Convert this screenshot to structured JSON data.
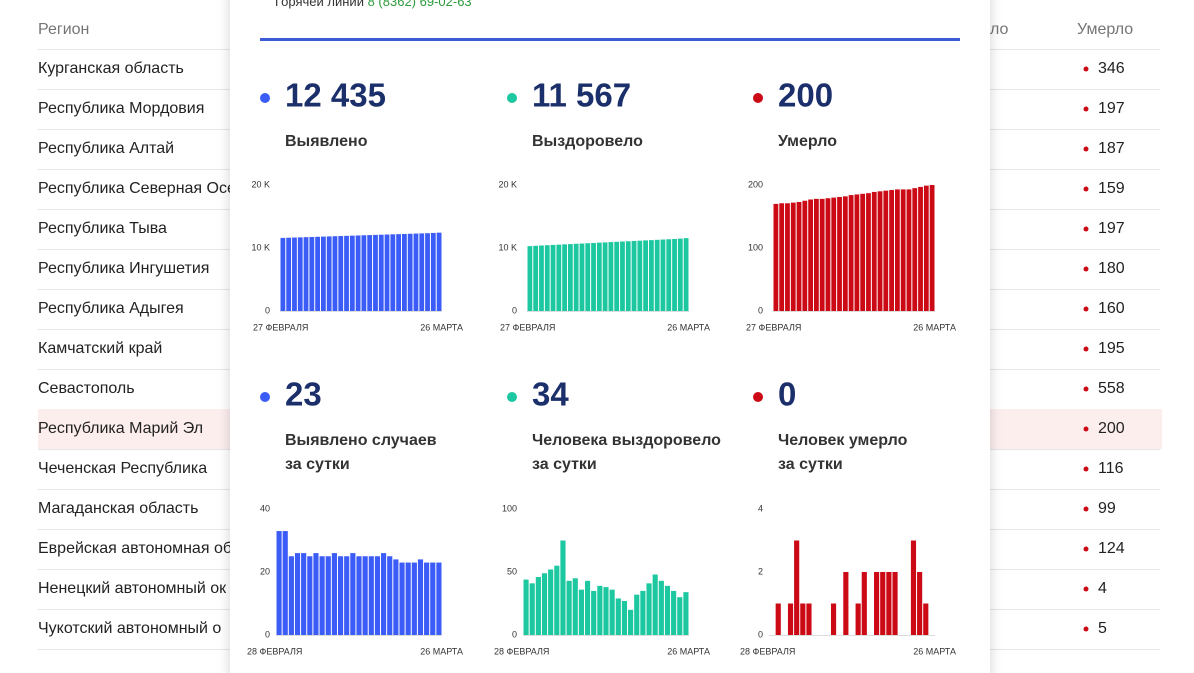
{
  "table": {
    "headers": [
      "Регион",
      "ло",
      "Умерло"
    ],
    "rows": [
      {
        "region": "Курганская область",
        "deaths": "346"
      },
      {
        "region": "Республика Мордовия",
        "deaths": "197"
      },
      {
        "region": "Республика Алтай",
        "deaths": "187"
      },
      {
        "region": "Республика Северная Осе",
        "deaths": "159"
      },
      {
        "region": "Республика Тыва",
        "deaths": "197"
      },
      {
        "region": "Республика Ингушетия",
        "deaths": "180"
      },
      {
        "region": "Республика Адыгея",
        "deaths": "160"
      },
      {
        "region": "Камчатский край",
        "deaths": "195"
      },
      {
        "region": "Севастополь",
        "deaths": "558"
      },
      {
        "region": "Республика Марий Эл",
        "deaths": "200",
        "highlighted": true
      },
      {
        "region": "Чеченская Республика",
        "deaths": "116"
      },
      {
        "region": "Магаданская область",
        "deaths": "99"
      },
      {
        "region": "Еврейская автономная об",
        "deaths": "124"
      },
      {
        "region": "Ненецкий автономный ок",
        "deaths": "4"
      },
      {
        "region": "Чукотский автономный о",
        "deaths": "5"
      }
    ]
  },
  "modal": {
    "hotline_label": "Горячей линии",
    "hotline_phone": "8 (8362) 69-02-63",
    "stats": [
      {
        "value": "12 435",
        "label": [
          "Выявлено"
        ]
      },
      {
        "value": "11 567",
        "label": [
          "Выздоровело"
        ]
      },
      {
        "value": "200",
        "label": [
          "Умерло"
        ]
      },
      {
        "value": "23",
        "label": [
          "Выявлено случаев",
          "за сутки"
        ]
      },
      {
        "value": "34",
        "label": [
          "Человека выздоровело",
          "за сутки"
        ]
      },
      {
        "value": "0",
        "label": [
          "Человек умерло",
          "за сутки"
        ]
      }
    ]
  },
  "chart_data": [
    {
      "type": "bar",
      "color": "#3b5cf6",
      "categories": [
        "27 ФЕВРАЛЯ",
        null,
        null,
        null,
        null,
        null,
        null,
        null,
        null,
        null,
        null,
        null,
        null,
        null,
        null,
        null,
        null,
        null,
        null,
        null,
        null,
        null,
        null,
        null,
        null,
        null,
        null,
        "26 МАРТА"
      ],
      "values": [
        11600,
        11630,
        11660,
        11690,
        11720,
        11750,
        11780,
        11810,
        11840,
        11870,
        11900,
        11930,
        11960,
        11990,
        12020,
        12050,
        12080,
        12110,
        12140,
        12170,
        12200,
        12230,
        12260,
        12290,
        12320,
        12350,
        12390,
        12435
      ],
      "ylim": [
        0,
        20000
      ],
      "yticks": [
        0,
        {
          "value": 10000,
          "label": "10 K"
        },
        {
          "value": 20000,
          "label": "20 K"
        }
      ]
    },
    {
      "type": "bar",
      "color": "#1dc8a0",
      "categories": [
        "27 ФЕВРАЛЯ",
        null,
        null,
        null,
        null,
        null,
        null,
        null,
        null,
        null,
        null,
        null,
        null,
        null,
        null,
        null,
        null,
        null,
        null,
        null,
        null,
        null,
        null,
        null,
        null,
        null,
        null,
        "26 МАРТА"
      ],
      "values": [
        10300,
        10350,
        10400,
        10440,
        10490,
        10530,
        10580,
        10620,
        10670,
        10710,
        10760,
        10800,
        10850,
        10890,
        10940,
        10980,
        11030,
        11070,
        11120,
        11160,
        11210,
        11250,
        11300,
        11340,
        11390,
        11430,
        11490,
        11567
      ],
      "ylim": [
        0,
        20000
      ],
      "yticks": [
        0,
        {
          "value": 10000,
          "label": "10 K"
        },
        {
          "value": 20000,
          "label": "20 K"
        }
      ]
    },
    {
      "type": "bar",
      "color": "#cc0a16",
      "categories": [
        "27 ФЕВРАЛЯ",
        null,
        null,
        null,
        null,
        null,
        null,
        null,
        null,
        null,
        null,
        null,
        null,
        null,
        null,
        null,
        null,
        null,
        null,
        null,
        null,
        null,
        null,
        null,
        null,
        null,
        null,
        "26 МАРТА"
      ],
      "values": [
        170,
        171,
        171,
        172,
        173,
        175,
        177,
        178,
        178,
        179,
        180,
        181,
        182,
        184,
        185,
        186,
        187,
        189,
        190,
        191,
        192,
        193,
        193,
        193,
        195,
        197,
        199,
        200
      ],
      "ylim": [
        0,
        200
      ],
      "yticks": [
        0,
        100,
        200
      ]
    },
    {
      "type": "bar",
      "color": "#3b5cf6",
      "categories": [
        "28 ФЕВРАЛЯ",
        null,
        null,
        null,
        null,
        null,
        null,
        null,
        null,
        null,
        null,
        null,
        null,
        null,
        null,
        null,
        null,
        null,
        null,
        null,
        null,
        null,
        null,
        null,
        null,
        null,
        "26 МАРТА"
      ],
      "values": [
        33,
        33,
        25,
        26,
        26,
        25,
        26,
        25,
        25,
        26,
        25,
        25,
        26,
        25,
        25,
        25,
        25,
        26,
        25,
        24,
        23,
        23,
        23,
        24,
        23,
        23,
        23
      ],
      "ylim": [
        0,
        40
      ],
      "yticks": [
        0,
        20,
        40
      ]
    },
    {
      "type": "bar",
      "color": "#1dc8a0",
      "categories": [
        "28 ФЕВРАЛЯ",
        null,
        null,
        null,
        null,
        null,
        null,
        null,
        null,
        null,
        null,
        null,
        null,
        null,
        null,
        null,
        null,
        null,
        null,
        null,
        null,
        null,
        null,
        null,
        null,
        null,
        "26 МАРТА"
      ],
      "values": [
        44,
        41,
        46,
        49,
        52,
        55,
        75,
        43,
        45,
        36,
        43,
        35,
        39,
        38,
        36,
        29,
        27,
        20,
        32,
        35,
        41,
        48,
        43,
        39,
        35,
        30,
        34
      ],
      "ylim": [
        0,
        100
      ],
      "yticks": [
        0,
        50,
        100
      ]
    },
    {
      "type": "bar",
      "color": "#cc0a16",
      "categories": [
        "28 ФЕВРАЛЯ",
        null,
        null,
        null,
        null,
        null,
        null,
        null,
        null,
        null,
        null,
        null,
        null,
        null,
        null,
        null,
        null,
        null,
        null,
        null,
        null,
        null,
        null,
        null,
        null,
        null,
        "26 МАРТА"
      ],
      "values": [
        0,
        1,
        0,
        1,
        3,
        1,
        1,
        0,
        0,
        0,
        1,
        0,
        2,
        0,
        1,
        2,
        0,
        2,
        2,
        2,
        2,
        0,
        0,
        3,
        2,
        1,
        0
      ],
      "ylim": [
        0,
        4
      ],
      "yticks": [
        0,
        2,
        4
      ]
    }
  ]
}
